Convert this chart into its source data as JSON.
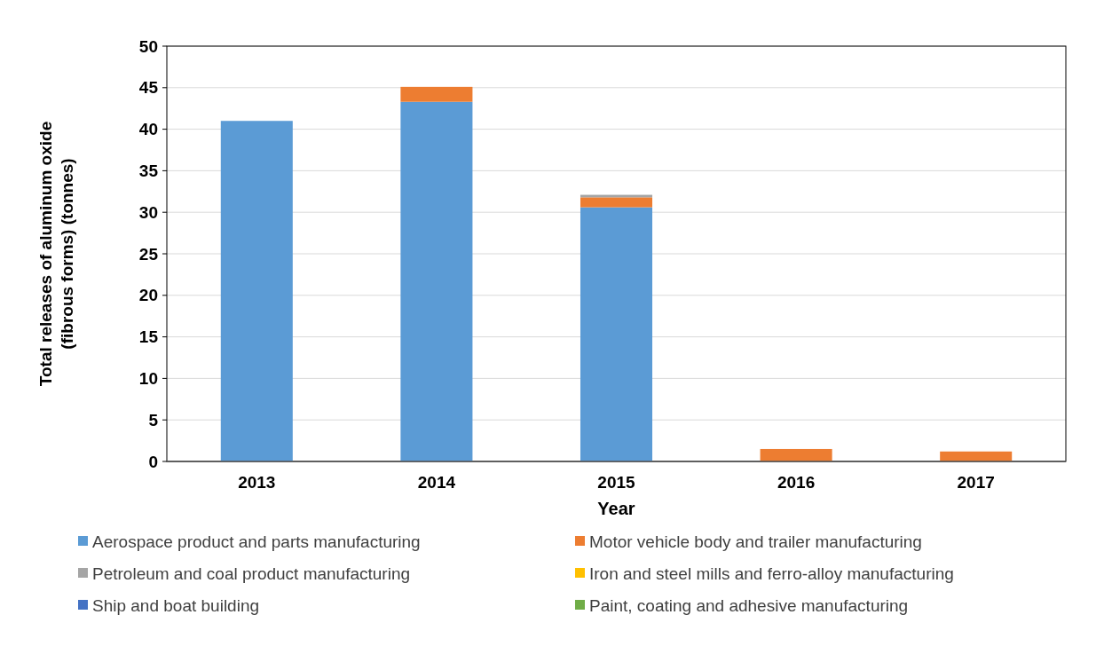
{
  "chart_data": {
    "type": "bar",
    "stacked": true,
    "xlabel": "Year",
    "ylabel": "Total releases of aluminum oxide (fibrous forms) (tonnes)",
    "categories": [
      "2013",
      "2014",
      "2015",
      "2016",
      "2017"
    ],
    "series": [
      {
        "name": "Aerospace product and parts manufacturing",
        "color": "#5b9bd5",
        "values": [
          41,
          43.3,
          30.6,
          0,
          0
        ]
      },
      {
        "name": "Motor vehicle body and trailer manufacturing",
        "color": "#ed7d31",
        "values": [
          0,
          1.8,
          1.2,
          1.5,
          1.2
        ]
      },
      {
        "name": "Petroleum and coal product manufacturing",
        "color": "#a5a5a5",
        "values": [
          0,
          0,
          0.3,
          0,
          0
        ]
      },
      {
        "name": "Iron and steel mills and ferro-alloy manufacturing",
        "color": "#ffc000",
        "values": [
          0,
          0,
          0,
          0,
          0
        ]
      },
      {
        "name": "Ship and boat building",
        "color": "#4472c4",
        "values": [
          0,
          0,
          0,
          0,
          0
        ]
      },
      {
        "name": "Paint, coating and adhesive manufacturing",
        "color": "#70ad47",
        "values": [
          0,
          0,
          0,
          0,
          0
        ]
      }
    ],
    "ylim": [
      0,
      50
    ],
    "yticks": [
      0,
      5,
      10,
      15,
      20,
      25,
      30,
      35,
      40,
      45,
      50
    ],
    "grid": "y",
    "legend": "bottom"
  }
}
